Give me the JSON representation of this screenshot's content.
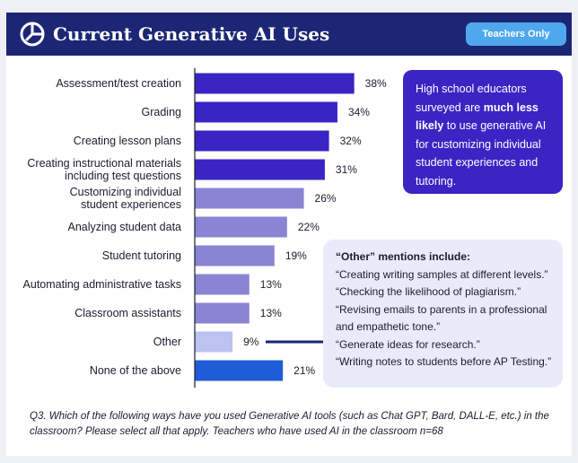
{
  "header": {
    "title": "Current Generative AI Uses",
    "badge": "Teachers Only"
  },
  "callout_note": {
    "text_before": "High school educators surveyed are ",
    "text_bold": "much less likely",
    "text_after": " to use generative AI for customizing individual student experiences and tutoring."
  },
  "other_mentions": {
    "heading": "“Other” mentions include:",
    "items": [
      "“Creating writing samples at different levels.”",
      "“Checking the likelihood of plagiarism.”",
      "“Revising emails to parents in a professional",
      "and empathetic tone.”",
      "“Generate ideas for research.”",
      "“Writing notes to students before AP Testing.”"
    ]
  },
  "footnote": "Q3. Which of the following ways have you used Generative AI tools (such as Chat GPT, Bard, DALL-E, etc.) in the classroom? Please select all that apply. Teachers who have used AI in the classroom n=68",
  "chart_data": {
    "type": "bar",
    "orientation": "horizontal",
    "categories": [
      [
        "Assessment/test creation"
      ],
      [
        "Grading"
      ],
      [
        "Creating lesson plans"
      ],
      [
        "Creating instructional materials",
        "including test questions"
      ],
      [
        "Customizing individual",
        "student experiences"
      ],
      [
        "Analyzing student data"
      ],
      [
        "Student tutoring"
      ],
      [
        "Automating administrative tasks"
      ],
      [
        "Classroom assistants"
      ],
      [
        "Other"
      ],
      [
        "None of the above"
      ]
    ],
    "values": [
      38,
      34,
      32,
      31,
      26,
      22,
      19,
      13,
      13,
      9,
      21
    ],
    "value_labels": [
      "38%",
      "34%",
      "32%",
      "31%",
      "26%",
      "22%",
      "19%",
      "13%",
      "13%",
      "9%",
      "21%"
    ],
    "bar_colors": [
      "#3a24c4",
      "#3a24c4",
      "#3a24c4",
      "#3a24c4",
      "#8a84d4",
      "#8a84d4",
      "#8a84d4",
      "#8a84d4",
      "#8a84d4",
      "#bcc3f2",
      "#1f5cd6"
    ],
    "xlim": [
      0,
      40
    ],
    "grid": false,
    "legend": "none"
  }
}
